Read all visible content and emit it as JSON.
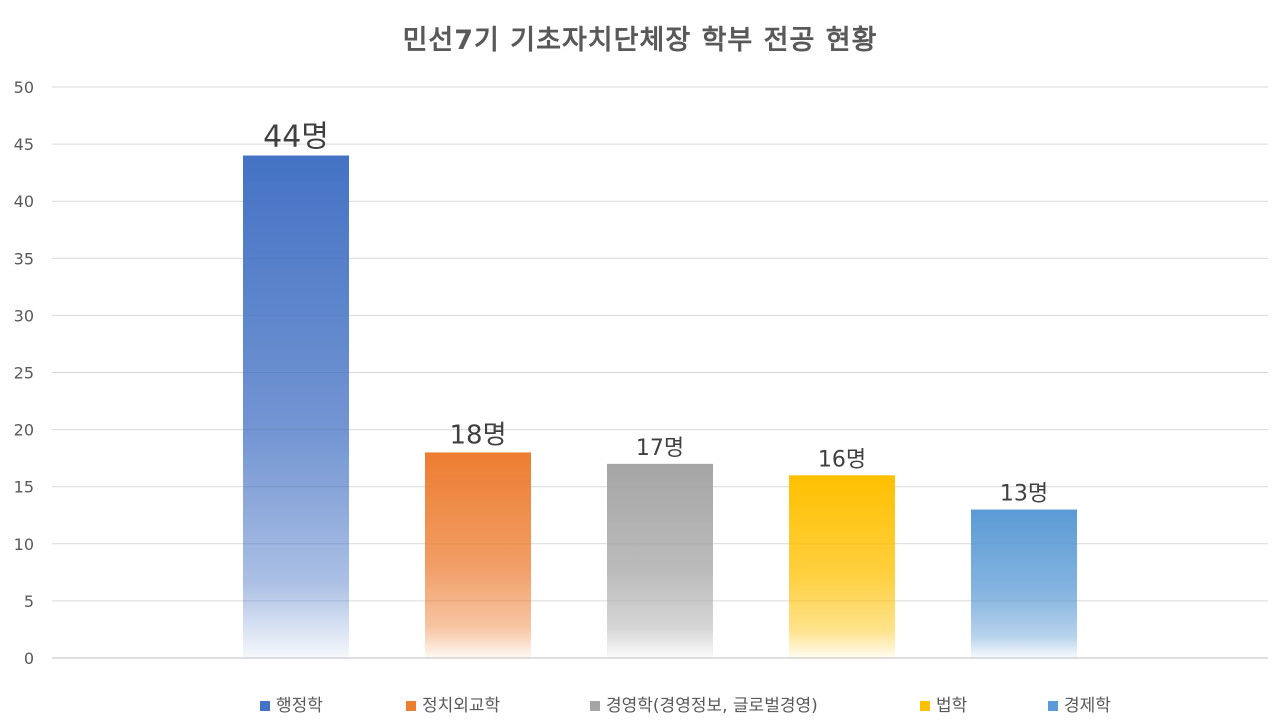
{
  "chart_data": {
    "type": "bar",
    "title": "민선7기 기초자치단체장 학부 전공 현황",
    "xlabel": "",
    "ylabel": "",
    "ylim": [
      0,
      50
    ],
    "yticks": [
      0,
      5,
      10,
      15,
      20,
      25,
      30,
      35,
      40,
      45,
      50
    ],
    "grid": true,
    "legend_position": "bottom",
    "series": [
      {
        "name": "행정학",
        "value": 44,
        "label": "44명",
        "color": "#4472C4"
      },
      {
        "name": "정치외교학",
        "value": 18,
        "label": "18명",
        "color": "#ED7D31"
      },
      {
        "name": "경영학(경영정보, 글로벌경영)",
        "value": 17,
        "label": "17명",
        "color": "#A5A5A5"
      },
      {
        "name": "법학",
        "value": 16,
        "label": "16명",
        "color": "#FFC000"
      },
      {
        "name": "경제학",
        "value": 13,
        "label": "13명",
        "color": "#5B9BD5"
      }
    ]
  }
}
